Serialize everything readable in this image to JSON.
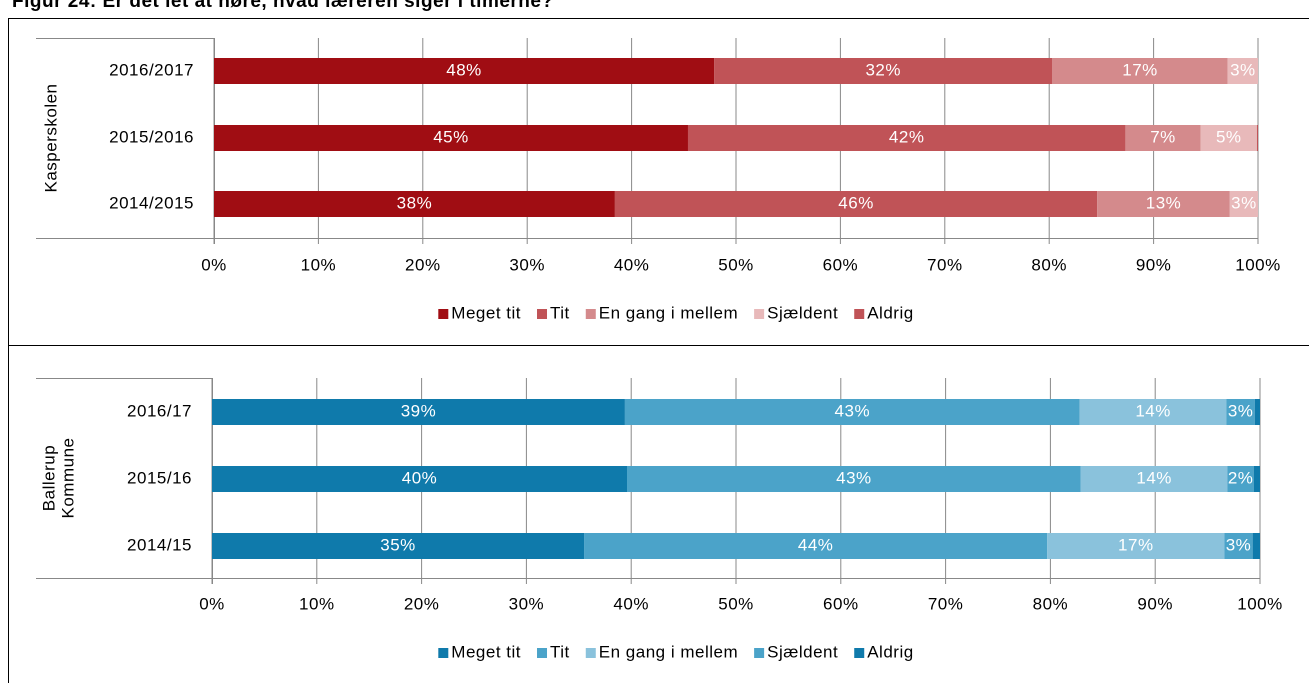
{
  "title": "Figur 24: Er det let at høre, hvad læreren siger i timerne?",
  "chart_data": [
    {
      "type": "bar",
      "orientation": "horizontal",
      "stacked": true,
      "ylabel": "Kasperskolen",
      "categories": [
        "2016/2017",
        "2015/2016",
        "2014/2015"
      ],
      "series": [
        {
          "name": "Meget tit",
          "color": "#a00d13",
          "values": [
            47.9,
            45.4,
            38.4
          ],
          "value_labels": [
            "48%",
            "45%",
            "38%"
          ]
        },
        {
          "name": "Tit",
          "color": "#c05357",
          "values": [
            32.4,
            41.9,
            46.2
          ],
          "value_labels": [
            "32%",
            "42%",
            "46%"
          ]
        },
        {
          "name": "En gang i mellem",
          "color": "#d48a8c",
          "values": [
            16.8,
            7.2,
            12.7
          ],
          "value_labels": [
            "17%",
            "7%",
            "13%"
          ]
        },
        {
          "name": "Sjældent",
          "color": "#e8b9ba",
          "values": [
            2.9,
            5.4,
            2.7
          ],
          "value_labels": [
            "3%",
            "5%",
            "3%"
          ]
        },
        {
          "name": "Aldrig",
          "color": "#c05357",
          "values": [
            0,
            0.1,
            0
          ],
          "value_labels": [
            null,
            null,
            null
          ]
        }
      ],
      "xlim": [
        0,
        100
      ],
      "xticks": [
        {
          "value": 0,
          "label": "0%"
        },
        {
          "value": 10,
          "label": "10%"
        },
        {
          "value": 20,
          "label": "20%"
        },
        {
          "value": 30,
          "label": "30%"
        },
        {
          "value": 40,
          "label": "40%"
        },
        {
          "value": 50,
          "label": "50%"
        },
        {
          "value": 60,
          "label": "60%"
        },
        {
          "value": 70,
          "label": "70%"
        },
        {
          "value": 80,
          "label": "80%"
        },
        {
          "value": 90,
          "label": "90%"
        },
        {
          "value": 100,
          "label": "100%"
        }
      ],
      "grid": true,
      "legend": "bottom"
    },
    {
      "type": "bar",
      "orientation": "horizontal",
      "stacked": true,
      "ylabel": "Ballerup Kommune",
      "categories": [
        "2016/17",
        "2015/16",
        "2014/15"
      ],
      "series": [
        {
          "name": "Meget tit",
          "color": "#0f7aab",
          "values": [
            39.4,
            39.6,
            35.5
          ],
          "value_labels": [
            "39%",
            "40%",
            "35%"
          ]
        },
        {
          "name": "Tit",
          "color": "#4ba3c9",
          "values": [
            43.4,
            43.3,
            44.2
          ],
          "value_labels": [
            "43%",
            "43%",
            "44%"
          ]
        },
        {
          "name": "En gang i mellem",
          "color": "#8ac2dc",
          "values": [
            14.0,
            14.0,
            16.9
          ],
          "value_labels": [
            "14%",
            "14%",
            "17%"
          ]
        },
        {
          "name": "Sjældent",
          "color": "#4ba3c9",
          "values": [
            2.7,
            2.5,
            2.7
          ],
          "value_labels": [
            "3%",
            "2%",
            "3%"
          ]
        },
        {
          "name": "Aldrig",
          "color": "#0f7aab",
          "values": [
            0.5,
            0.6,
            0.7
          ],
          "value_labels": [
            null,
            null,
            null
          ]
        }
      ],
      "xlim": [
        0,
        100
      ],
      "xticks": [
        {
          "value": 0,
          "label": "0%"
        },
        {
          "value": 10,
          "label": "10%"
        },
        {
          "value": 20,
          "label": "20%"
        },
        {
          "value": 30,
          "label": "30%"
        },
        {
          "value": 40,
          "label": "40%"
        },
        {
          "value": 50,
          "label": "50%"
        },
        {
          "value": 60,
          "label": "60%"
        },
        {
          "value": 70,
          "label": "70%"
        },
        {
          "value": 80,
          "label": "80%"
        },
        {
          "value": 90,
          "label": "90%"
        },
        {
          "value": 100,
          "label": "100%"
        }
      ],
      "grid": true,
      "legend": "bottom"
    }
  ]
}
